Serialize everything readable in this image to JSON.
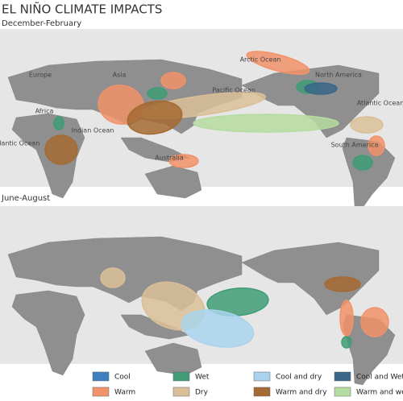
{
  "header": {
    "title": "EL NIÑO CLIMATE IMPACTS"
  },
  "maps": [
    {
      "season": "December-February",
      "labels": [
        "Arctic Ocean",
        "Europe",
        "Asia",
        "Pacific Ocean",
        "North America",
        "Atlantic Ocean",
        "Africa",
        "Indian Ocean",
        "Atlantic Ocean",
        "Australia",
        "South America"
      ]
    },
    {
      "season": "June-August"
    }
  ],
  "legend": [
    {
      "label": "Cool",
      "color": "#3d7fbf"
    },
    {
      "label": "Wet",
      "color": "#3f9c76"
    },
    {
      "label": "Cool and dry",
      "color": "#a9d3ec"
    },
    {
      "label": "Cool and Wet",
      "color": "#3a6688"
    },
    {
      "label": "Warm",
      "color": "#f1926a"
    },
    {
      "label": "Dry",
      "color": "#d9bf98"
    },
    {
      "label": "Warm and dry",
      "color": "#a56a33"
    },
    {
      "label": "Warm and wet",
      "color": "#b5dca0"
    }
  ]
}
